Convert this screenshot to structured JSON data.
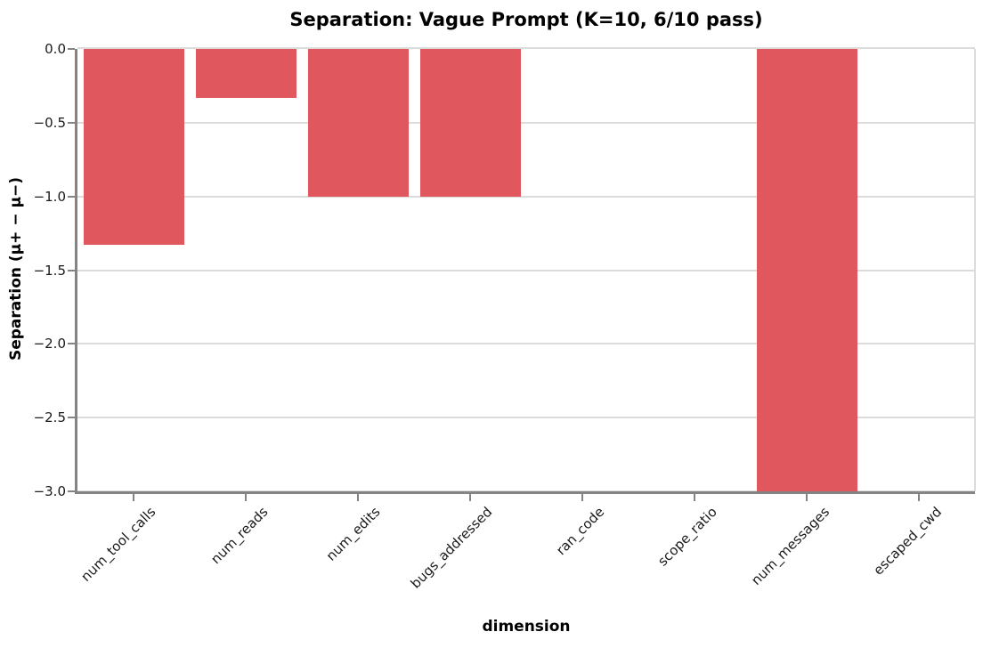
{
  "chart_data": {
    "type": "bar",
    "title": "Separation: Vague Prompt (K=10, 6/10 pass)",
    "xlabel": "dimension",
    "ylabel": "Separation (μ+ − μ−)",
    "categories": [
      "num_tool_calls",
      "num_reads",
      "num_edits",
      "bugs_addressed",
      "ran_code",
      "scope_ratio",
      "num_messages",
      "escaped_cwd"
    ],
    "values": [
      -1.33,
      -0.33,
      -1.0,
      -1.0,
      0.0,
      0.0,
      -3.0,
      0.0
    ],
    "ylim": [
      -3.0,
      0.0
    ],
    "yticks": [
      0.0,
      -0.5,
      -1.0,
      -1.5,
      -2.0,
      -2.5,
      -3.0
    ],
    "ytick_labels": [
      "0.0",
      "−0.5",
      "−1.0",
      "−1.5",
      "−2.0",
      "−2.5",
      "−3.0"
    ],
    "grid": true,
    "legend_position": "none",
    "colors": {
      "bar": "#E0585D",
      "grid": "#DCDCDC",
      "spine_main": "#848484",
      "spine_light": "#DCDCDC",
      "tick_text": "#1a1a1a",
      "background": "#ffffff"
    }
  }
}
